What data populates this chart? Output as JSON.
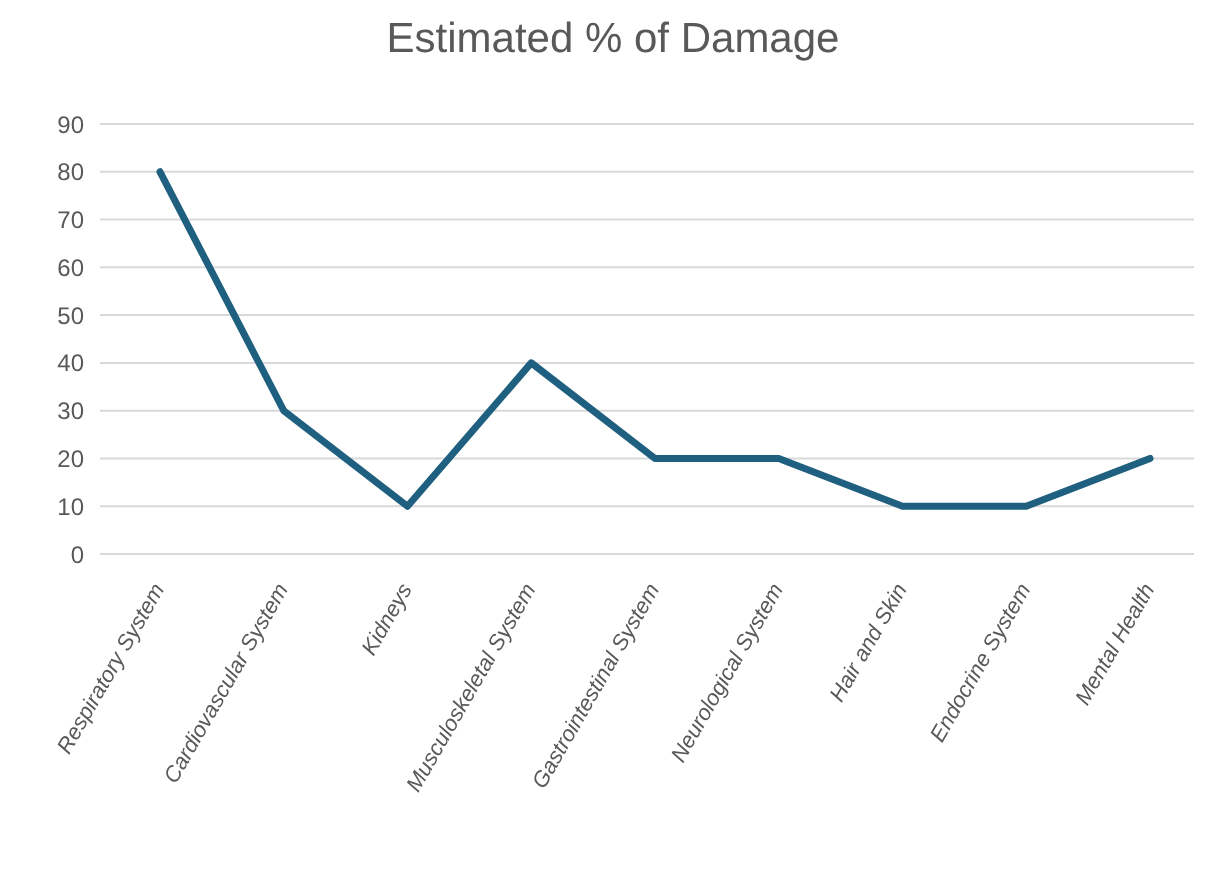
{
  "chart_data": {
    "type": "line",
    "title": "Estimated % of Damage",
    "categories": [
      "Respiratory System",
      "Cardiovascular System",
      "Kidneys",
      "Musculoskeletal System",
      "Gastrointestinal System",
      "Neurological System",
      "Hair and Skin",
      "Endocrine System",
      "Mental Health"
    ],
    "series": [
      {
        "color": "#1f5f7f",
        "values": [
          80,
          30,
          10,
          40,
          20,
          20,
          10,
          10,
          20
        ]
      }
    ],
    "ylim": [
      0,
      90
    ],
    "yticks": [
      0,
      10,
      20,
      30,
      40,
      50,
      60,
      70,
      80,
      90
    ],
    "grid": "y",
    "legend": false,
    "marker": "none",
    "line_style": "solid"
  }
}
